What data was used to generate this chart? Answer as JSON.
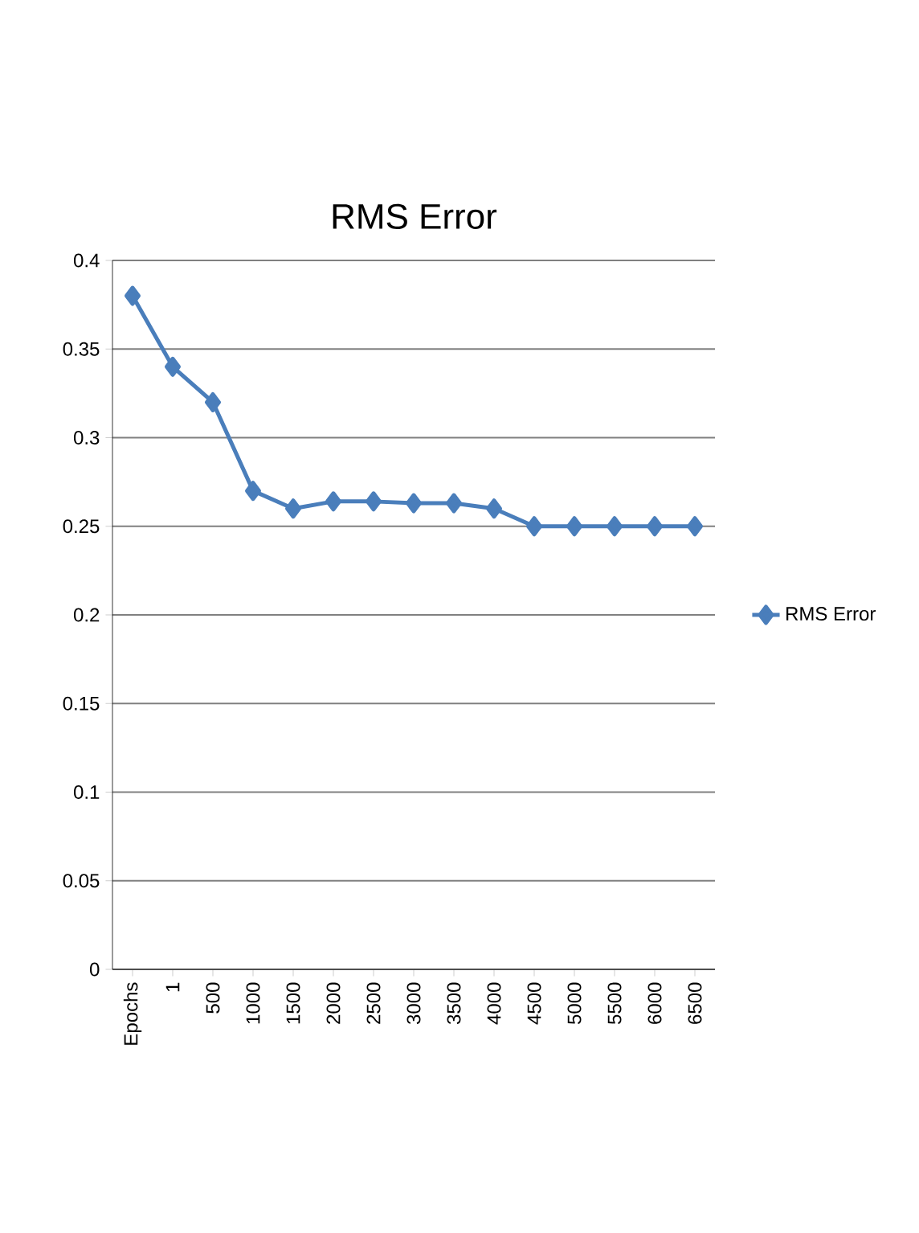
{
  "chart_data": {
    "type": "line",
    "title": "RMS Error",
    "categories": [
      "Epochs",
      "1",
      "500",
      "1000",
      "1500",
      "2000",
      "2500",
      "3000",
      "3500",
      "4000",
      "4500",
      "5000",
      "5500",
      "6000",
      "6500"
    ],
    "series": [
      {
        "name": "RMS Error",
        "color": "#4a7ebb",
        "values": [
          0.38,
          0.34,
          0.32,
          0.27,
          0.26,
          0.264,
          0.264,
          0.263,
          0.263,
          0.26,
          0.25,
          0.25,
          0.25,
          0.25,
          0.25
        ]
      }
    ],
    "ylim": [
      0,
      0.4
    ],
    "yticks": [
      0,
      0.05,
      0.1,
      0.15,
      0.2,
      0.25,
      0.3,
      0.35,
      0.4
    ],
    "grid": "y",
    "legend": "right",
    "marker": "diamond",
    "line_style": "solid"
  }
}
